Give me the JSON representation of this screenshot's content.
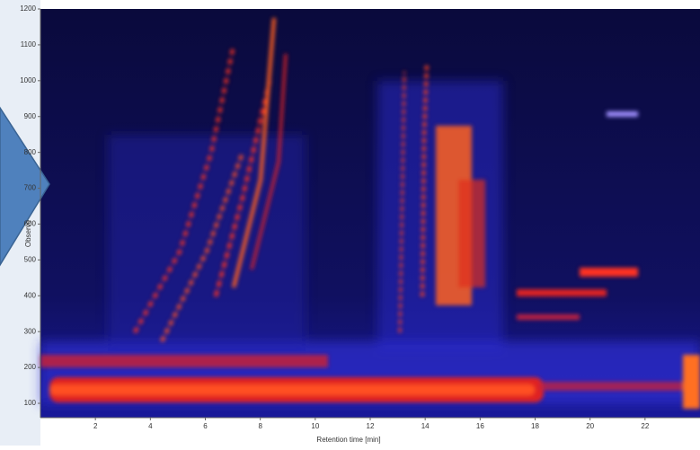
{
  "chart_data": {
    "type": "heatmap",
    "x_label": "Retention time [min]",
    "y_label": "Observe",
    "xlim": [
      0,
      24
    ],
    "xticks": [
      2,
      4,
      6,
      8,
      10,
      12,
      14,
      16,
      18,
      20,
      22
    ],
    "ylim": [
      60,
      1200
    ],
    "yticks": [
      100,
      200,
      300,
      400,
      500,
      600,
      700,
      800,
      900,
      1000,
      1100,
      1200
    ]
  }
}
